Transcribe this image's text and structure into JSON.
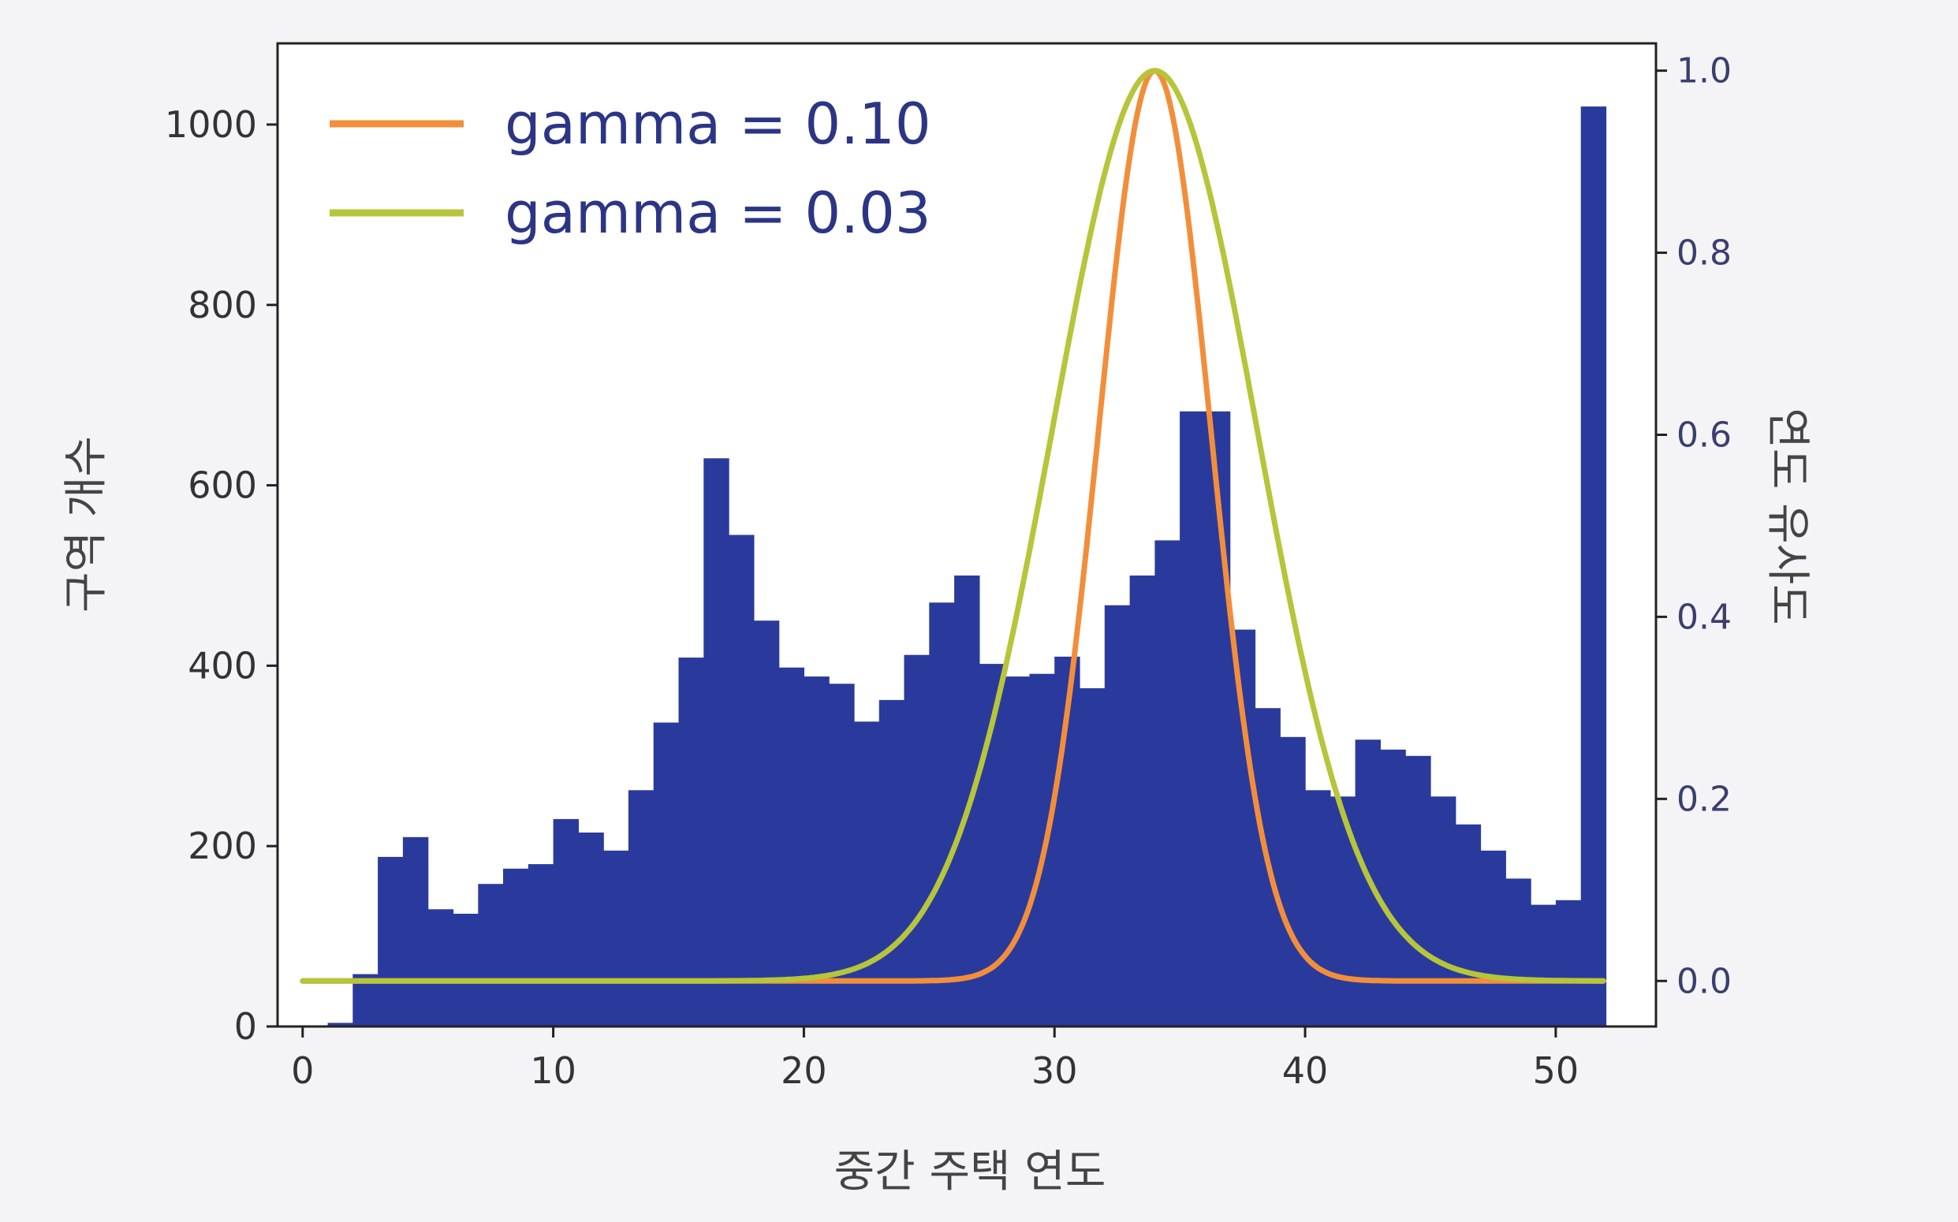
{
  "chart_data": {
    "type": "bar",
    "title": "",
    "xlabel": "중간 주택 연도",
    "ylabel": "구역 개수",
    "y2label": "연도 유사도",
    "xlim": [
      -1,
      54
    ],
    "ylim": [
      0,
      1090
    ],
    "y2lim": [
      -0.05,
      1.03
    ],
    "xticks": [
      0,
      10,
      20,
      30,
      40,
      50
    ],
    "yticks": [
      0,
      200,
      400,
      600,
      800,
      1000
    ],
    "y2ticks": [
      0.0,
      0.2,
      0.4,
      0.6,
      0.8,
      1.0
    ],
    "y2tick_labels": [
      "0.0",
      "0.2",
      "0.4",
      "0.6",
      "0.8",
      "1.0"
    ],
    "grid": false,
    "legend_position": "top-left",
    "histogram": {
      "bin_width": 1,
      "bin_starts": [
        1,
        2,
        3,
        4,
        5,
        6,
        7,
        8,
        9,
        10,
        11,
        12,
        13,
        14,
        15,
        16,
        17,
        18,
        19,
        20,
        21,
        22,
        23,
        24,
        25,
        26,
        27,
        28,
        29,
        30,
        31,
        32,
        33,
        34,
        35,
        36,
        37,
        38,
        39,
        40,
        41,
        42,
        43,
        44,
        45,
        46,
        47,
        48,
        49,
        50,
        51
      ],
      "counts": [
        4,
        58,
        188,
        210,
        130,
        125,
        158,
        175,
        180,
        230,
        215,
        195,
        262,
        337,
        409,
        630,
        545,
        450,
        398,
        388,
        380,
        338,
        362,
        412,
        470,
        500,
        402,
        388,
        391,
        410,
        375,
        467,
        500,
        539,
        682,
        682,
        440,
        353,
        321,
        262,
        255,
        318,
        307,
        300,
        255,
        224,
        195,
        164,
        135,
        140,
        1020
      ],
      "color": "#2a3a9c"
    },
    "series": [
      {
        "name": "gamma = 0.10",
        "gamma": 0.1,
        "center": 34,
        "color": "#f28e3a"
      },
      {
        "name": "gamma = 0.03",
        "gamma": 0.03,
        "center": 34,
        "color": "#b6c53a"
      }
    ]
  }
}
